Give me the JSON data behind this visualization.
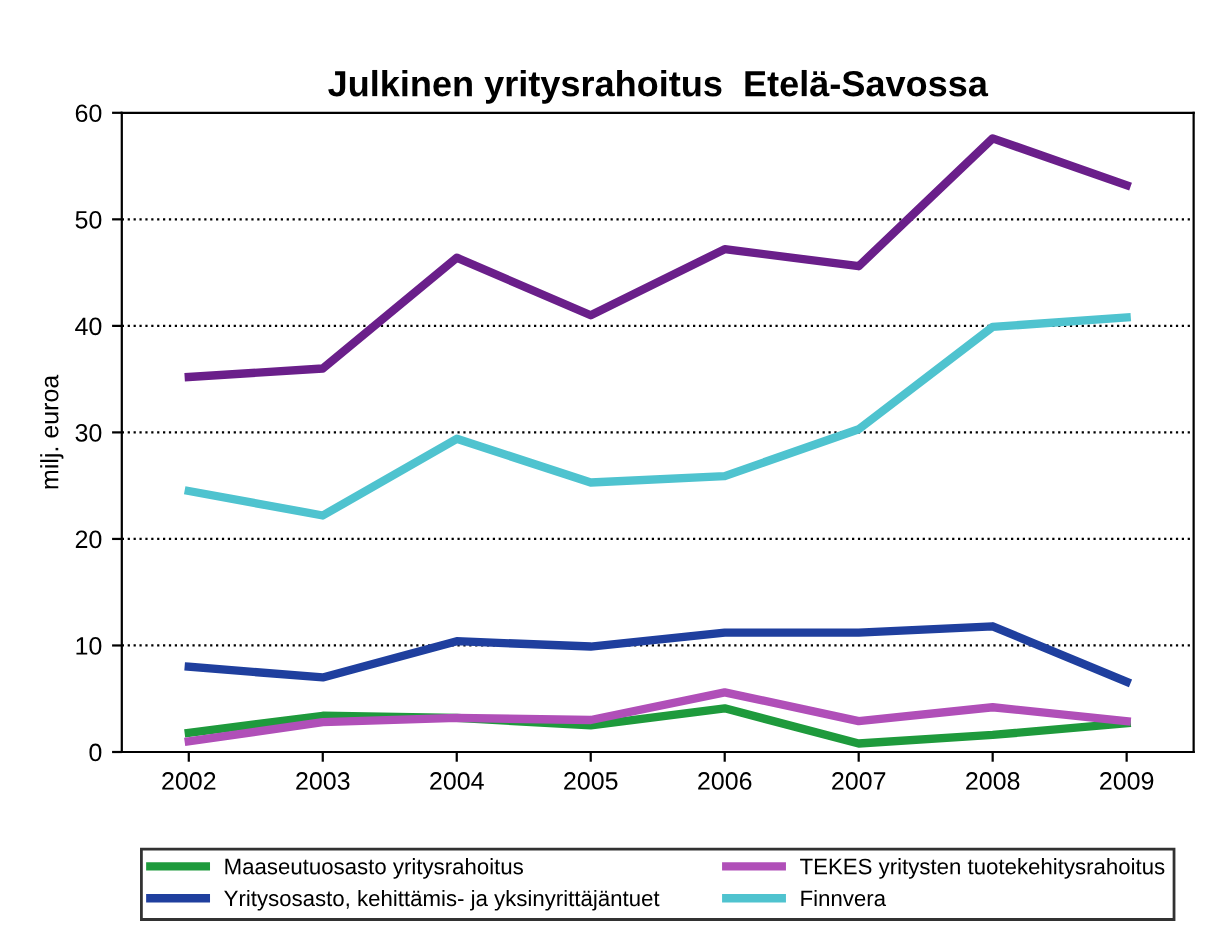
{
  "chart_data": {
    "type": "line",
    "title": "Julkinen yritysrahoitus  Etelä-Savossa",
    "ylabel": "milj. euroa",
    "categories": [
      "2002",
      "2003",
      "2004",
      "2005",
      "2006",
      "2007",
      "2008",
      "2009"
    ],
    "series": [
      {
        "color": "#6a1f8a",
        "values": [
          35.2,
          36,
          46.4,
          41,
          47.2,
          45.6,
          57.6,
          53.2
        ]
      },
      {
        "name": "Maaseutuosasto yritysrahoitus",
        "color": "#1e9a3c",
        "values": [
          1.8,
          3.4,
          3.2,
          2.5,
          4.1,
          0.8,
          1.6,
          2.7
        ]
      },
      {
        "name": "TEKES yritysten tuotekehitysrahoitus",
        "color": "#b04fb8",
        "values": [
          1,
          2.8,
          3.2,
          3,
          5.6,
          2.9,
          4.2,
          2.9
        ]
      },
      {
        "name": "Yritysosasto, kehittämis- ja yksinyrittäjäntuet",
        "color": "#1f3f9e",
        "values": [
          8,
          7,
          10.4,
          9.9,
          11.2,
          11.2,
          11.8,
          6.6
        ]
      },
      {
        "name": "Finnvera",
        "color": "#4fc3cf",
        "values": [
          24.5,
          22.2,
          29.4,
          25.3,
          25.9,
          30.3,
          39.9,
          40.8
        ]
      }
    ],
    "ylim": [
      0,
      60
    ],
    "yticks": [
      0,
      10,
      20,
      30,
      40,
      50,
      60
    ],
    "grid": "y",
    "legend": "bottom",
    "marker": "none",
    "line_style": "solid"
  }
}
